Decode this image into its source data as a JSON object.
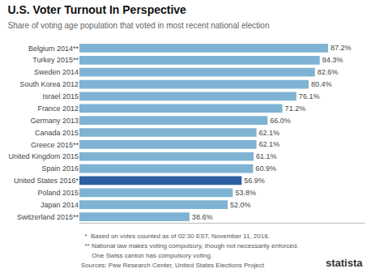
{
  "chart_data": {
    "type": "bar",
    "orientation": "horizontal",
    "title": "U.S. Voter Turnout In Perspective",
    "subtitle": "Share of voting age population that voted in most recent national election",
    "categories": [
      "Belgium 2014**",
      "Turkey 2015**",
      "Sweden 2014",
      "South Korea 2012",
      "Israel 2015",
      "France 2012",
      "Germany 2013",
      "Canada 2015",
      "Greece 2015**",
      "United Kingdom 2015",
      "Spain 2016",
      "United States 2016*",
      "Poland 2015",
      "Japan 2014",
      "Switzerland 2015**"
    ],
    "values": [
      87.2,
      84.3,
      82.6,
      80.4,
      76.1,
      71.2,
      66.0,
      62.1,
      62.1,
      61.1,
      60.9,
      56.9,
      53.8,
      52.0,
      38.6
    ],
    "value_labels": [
      "87.2%",
      "84.3%",
      "82.6%",
      "80.4%",
      "76.1%",
      "71.2%",
      "66.0%",
      "62.1%",
      "62.1%",
      "61.1%",
      "60.9%",
      "56.9%",
      "53.8%",
      "52.0%",
      "38.6%"
    ],
    "colors": [
      "#7fb3d3",
      "#7fb3d3",
      "#7fb3d3",
      "#7fb3d3",
      "#7fb3d3",
      "#7fb3d3",
      "#7fb3d3",
      "#7fb3d3",
      "#7fb3d3",
      "#7fb3d3",
      "#7fb3d3",
      "#2e5fa3",
      "#7fb3d3",
      "#7fb3d3",
      "#7fb3d3"
    ],
    "xlim": [
      0,
      100
    ],
    "data_labels": true,
    "tick_labels": "y",
    "grid": false,
    "annotations": [
      "  *  Based on votes counted as of 02:30 EST, November 11, 2016.",
      "  ** National law makes voting compulsory, though not necessarily enforced.",
      "      One Swiss canton has compulsory voting.",
      "Sources: Pew Research Center, United States Elections Project",
      "statista"
    ]
  }
}
